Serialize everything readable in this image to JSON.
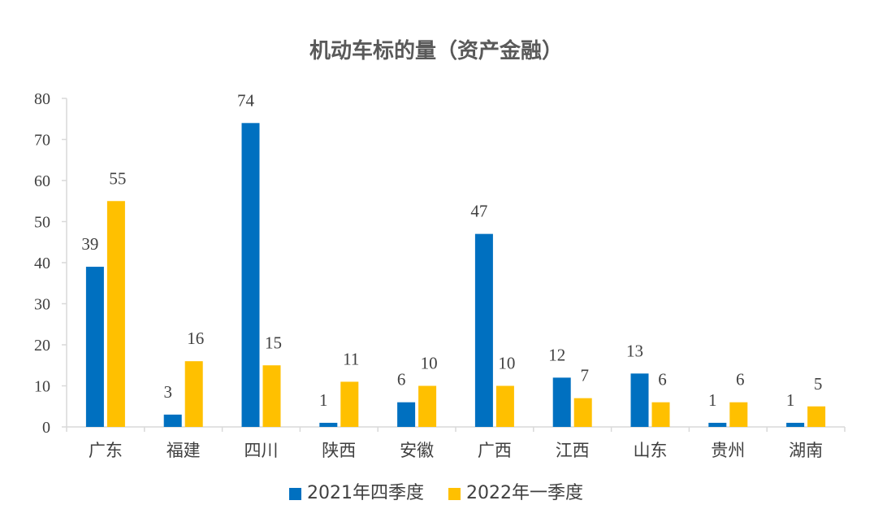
{
  "chart_data": {
    "type": "bar",
    "title": "机动车标的量（资产金融）",
    "categories": [
      "广东",
      "福建",
      "四川",
      "陕西",
      "安徽",
      "广西",
      "江西",
      "山东",
      "贵州",
      "湖南"
    ],
    "series": [
      {
        "name": "2021年四季度",
        "color": "#0070C0",
        "values": [
          39,
          3,
          74,
          1,
          6,
          47,
          12,
          13,
          1,
          1
        ]
      },
      {
        "name": "2022年一季度",
        "color": "#FFC000",
        "values": [
          55,
          16,
          15,
          11,
          10,
          10,
          7,
          6,
          6,
          5
        ]
      }
    ],
    "yticks": [
      0,
      10,
      20,
      30,
      40,
      50,
      60,
      70,
      80
    ],
    "ylim": [
      0,
      80
    ],
    "xlabel": "",
    "ylabel": "",
    "grid": false,
    "legend_position": "bottom",
    "data_labels": true
  }
}
